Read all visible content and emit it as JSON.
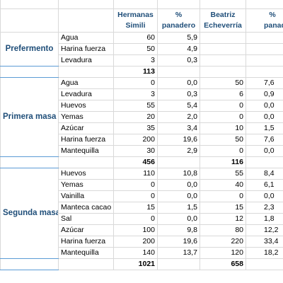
{
  "header": [
    "Hermanas Simili",
    "% panadero",
    "Beatriz Echeverría",
    "% panadero"
  ],
  "sections": [
    {
      "label": "Prefermento",
      "rows": [
        [
          "Agua",
          "60",
          "5,9",
          "",
          ""
        ],
        [
          "Harina fuerza",
          "50",
          "4,9",
          "",
          ""
        ],
        [
          "Levadura",
          "3",
          "0,3",
          "",
          ""
        ]
      ],
      "total": [
        "113",
        ""
      ]
    },
    {
      "label": "Primera masa",
      "rows": [
        [
          "Agua",
          "0",
          "0,0",
          "50",
          "7,6"
        ],
        [
          "Levadura",
          "3",
          "0,3",
          "6",
          "0,9"
        ],
        [
          "Huevos",
          "55",
          "5,4",
          "0",
          "0,0"
        ],
        [
          "Yemas",
          "20",
          "2,0",
          "0",
          "0,0"
        ],
        [
          "Azúcar",
          "35",
          "3,4",
          "10",
          "1,5"
        ],
        [
          "Harina fuerza",
          "200",
          "19,6",
          "50",
          "7,6"
        ],
        [
          "Mantequilla",
          "30",
          "2,9",
          "0",
          "0,0"
        ]
      ],
      "total": [
        "456",
        "116"
      ]
    },
    {
      "label": "Segunda masa",
      "rows": [
        [
          "Huevos",
          "110",
          "10,8",
          "55",
          "8,4"
        ],
        [
          "Yemas",
          "0",
          "0,0",
          "40",
          "6,1"
        ],
        [
          "Vainilla",
          "0",
          "0,0",
          "0",
          "0,0"
        ],
        [
          "Manteca cacao",
          "15",
          "1,5",
          "15",
          "2,3"
        ],
        [
          "Sal",
          "0",
          "0,0",
          "12",
          "1,8"
        ],
        [
          "Azúcar",
          "100",
          "9,8",
          "80",
          "12,2"
        ],
        [
          "Harina fuerza",
          "200",
          "19,6",
          "220",
          "33,4"
        ],
        [
          "Mantequilla",
          "140",
          "13,7",
          "120",
          "18,2"
        ]
      ],
      "total": [
        "1021",
        "658"
      ]
    }
  ]
}
